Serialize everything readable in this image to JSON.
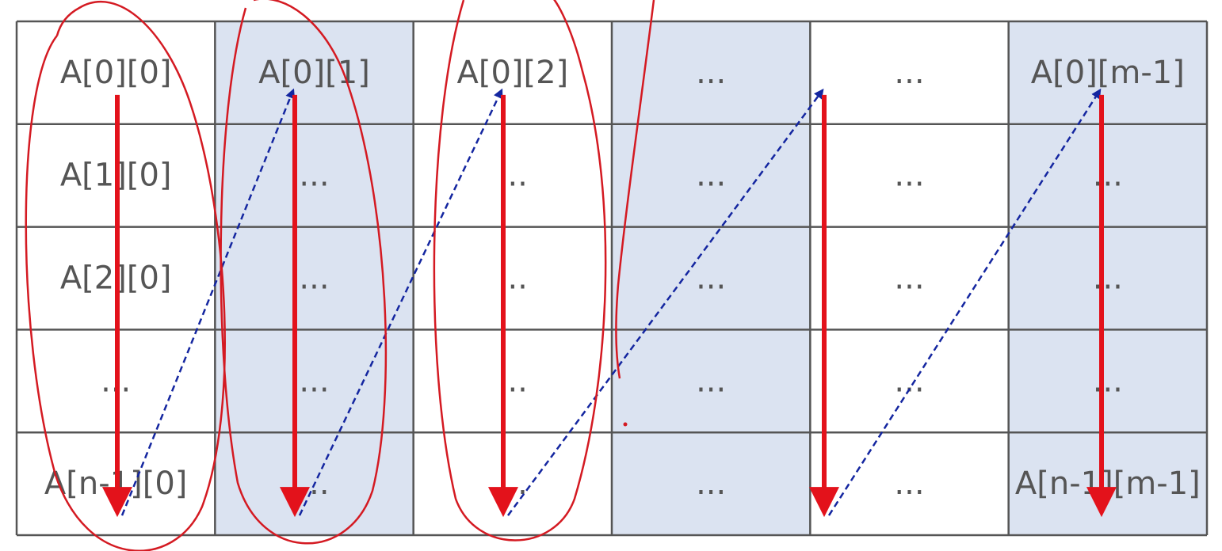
{
  "colors": {
    "background": "#ffffff",
    "shaded_column": "#dbe3f1",
    "grid_line": "#555555",
    "text": "#555555",
    "column_arrow": "#e3121b",
    "jump_arrow": "#1426a0",
    "annotation_ink": "#d41a22"
  },
  "grid": {
    "rows": 5,
    "cols": 6,
    "shaded_columns": [
      1,
      3,
      5
    ],
    "cells": [
      [
        "A[0][0]",
        "A[0][1]",
        "A[0][2]",
        "...",
        "...",
        "A[0][m-1]"
      ],
      [
        "A[1][0]",
        "...",
        "...",
        "...",
        "...",
        "..."
      ],
      [
        "A[2][0]",
        "...",
        "...",
        "...",
        "...",
        "..."
      ],
      [
        "...",
        "...",
        "...",
        "...",
        "...",
        "..."
      ],
      [
        "A[n-1][0]",
        "...",
        "...",
        "...",
        "...",
        "A[n-1][m-1]"
      ]
    ]
  },
  "traversal": {
    "order": "column-major",
    "column_arrows": [
      0,
      1,
      2,
      4,
      5
    ],
    "jump_arrows": [
      [
        0,
        1
      ],
      [
        1,
        2
      ],
      [
        2,
        4
      ],
      [
        4,
        5
      ]
    ]
  }
}
